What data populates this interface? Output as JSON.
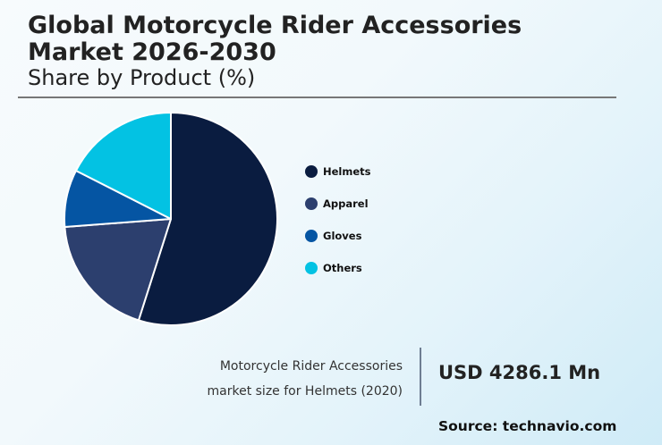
{
  "header": {
    "title": "Global Motorcycle Rider Accessories Market 2026-2030",
    "subtitle": "Share by Product (%)"
  },
  "legend": [
    {
      "label": "Helmets",
      "color": "#0a1c40"
    },
    {
      "label": "Apparel",
      "color": "#2c3f6e"
    },
    {
      "label": "Gloves",
      "color": "#0555a3"
    },
    {
      "label": "Others",
      "color": "#03c2e3"
    }
  ],
  "stat": {
    "label_line1": "Motorcycle Rider Accessories",
    "label_line2": "market size for Helmets (2020)",
    "value": "USD 4286.1 Mn"
  },
  "source": "Source: technavio.com",
  "chart_data": {
    "type": "pie",
    "title": "Global Motorcycle Rider Accessories Market 2026-2030",
    "subtitle": "Share by Product (%)",
    "categories": [
      "Helmets",
      "Apparel",
      "Gloves",
      "Others"
    ],
    "values": [
      54.9,
      18.9,
      8.7,
      17.5
    ],
    "colors": [
      "#0a1c40",
      "#2c3f6e",
      "#0555a3",
      "#03c2e3"
    ],
    "start_angle": "12 o'clock, clockwise",
    "legend_position": "right",
    "annotation": "Motorcycle Rider Accessories market size for Helmets (2020): USD 4286.1 Mn"
  }
}
